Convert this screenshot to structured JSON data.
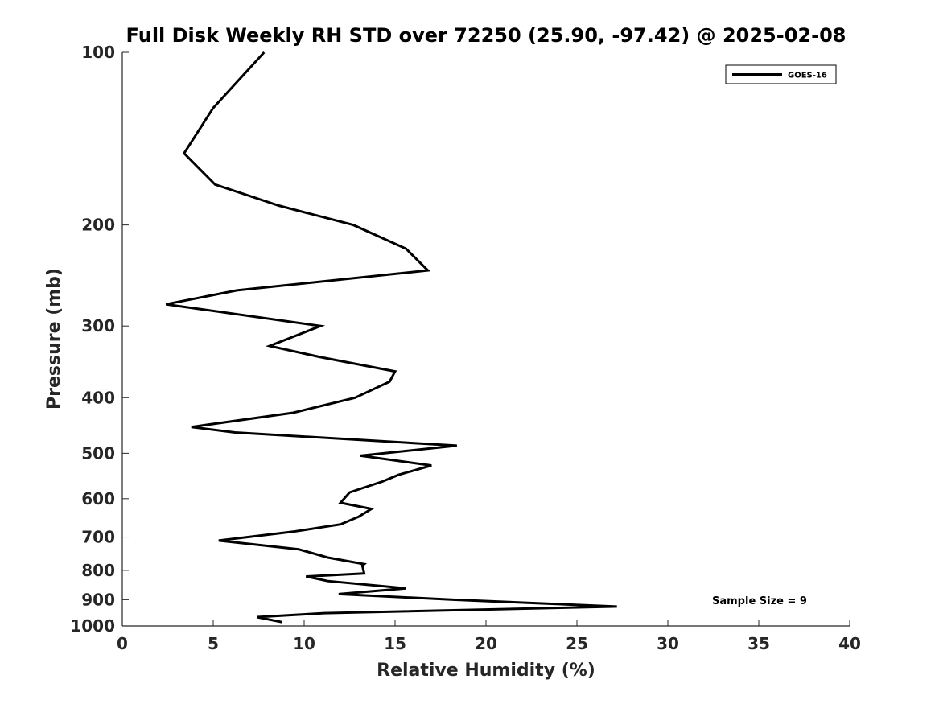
{
  "chart_data": {
    "type": "line",
    "title": "Full Disk Weekly RH STD over 72250 (25.90, -97.42) @ 2025-02-08",
    "xlabel": "Relative Humidity (%)",
    "ylabel": "Pressure (mb)",
    "xlim": [
      0,
      40
    ],
    "ylim": [
      1000,
      100
    ],
    "y_scale": "log",
    "y_reversed": true,
    "xticks": [
      0,
      5,
      10,
      15,
      20,
      25,
      30,
      35,
      40
    ],
    "yticks": [
      100,
      200,
      300,
      400,
      500,
      600,
      700,
      800,
      900,
      1000
    ],
    "grid": false,
    "legend_position": "top-right",
    "annotation": "Sample Size = 9",
    "series": [
      {
        "name": "GOES-16",
        "color": "#000000",
        "points": [
          [
            7.8,
            100
          ],
          [
            5.0,
            125
          ],
          [
            3.4,
            150
          ],
          [
            5.1,
            170
          ],
          [
            8.6,
            185
          ],
          [
            12.7,
            200
          ],
          [
            15.6,
            220
          ],
          [
            16.8,
            240
          ],
          [
            6.3,
            260
          ],
          [
            2.4,
            275
          ],
          [
            10.9,
            300
          ],
          [
            8.1,
            325
          ],
          [
            10.9,
            340
          ],
          [
            15.0,
            360
          ],
          [
            14.7,
            375
          ],
          [
            12.8,
            400
          ],
          [
            9.4,
            425
          ],
          [
            3.8,
            450
          ],
          [
            6.2,
            460
          ],
          [
            18.4,
            485
          ],
          [
            13.1,
            505
          ],
          [
            17.0,
            525
          ],
          [
            15.2,
            545
          ],
          [
            14.3,
            560
          ],
          [
            12.5,
            585
          ],
          [
            12.0,
            610
          ],
          [
            13.7,
            625
          ],
          [
            13.0,
            645
          ],
          [
            12.0,
            665
          ],
          [
            9.4,
            685
          ],
          [
            5.3,
            710
          ],
          [
            9.7,
            735
          ],
          [
            11.3,
            760
          ],
          [
            13.3,
            780
          ],
          [
            13.2,
            785
          ],
          [
            13.3,
            810
          ],
          [
            10.1,
            820
          ],
          [
            11.3,
            835
          ],
          [
            15.6,
            860
          ],
          [
            11.9,
            880
          ],
          [
            18.2,
            900
          ],
          [
            27.2,
            925
          ],
          [
            11.1,
            950
          ],
          [
            7.4,
            965
          ],
          [
            8.8,
            985
          ]
        ]
      }
    ]
  }
}
